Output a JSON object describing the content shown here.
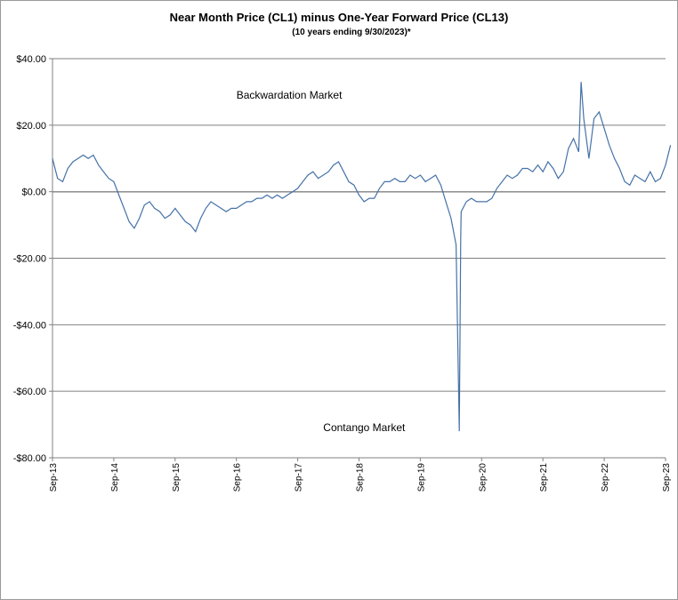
{
  "chart_data": {
    "type": "line",
    "title": "Near Month Price (CL1) minus One-Year Forward Price (CL13)",
    "subtitle": "(10 years ending  9/30/2023)*",
    "xlabel": "",
    "ylabel": "",
    "ylim": [
      -80,
      40
    ],
    "xlim": [
      "2013-09",
      "2023-09"
    ],
    "ytick_labels": [
      "$40.00",
      "$20.00",
      "$0.00",
      "-$20.00",
      "-$40.00",
      "-$60.00",
      "-$80.00"
    ],
    "ytick_values": [
      40,
      20,
      0,
      -20,
      -40,
      -60,
      -80
    ],
    "xtick_labels": [
      "Sep-13",
      "Sep-14",
      "Sep-15",
      "Sep-16",
      "Sep-17",
      "Sep-18",
      "Sep-19",
      "Sep-20",
      "Sep-21",
      "Sep-22",
      "Sep-23"
    ],
    "grid": true,
    "line_color": "#4572a7",
    "annotations": [
      {
        "text": "Backwardation Market",
        "x": "2016-09",
        "y": 28
      },
      {
        "text": "Contango Market",
        "x": "2018-02",
        "y": -72
      }
    ],
    "series": [
      {
        "points": [
          [
            "2013-09",
            10
          ],
          [
            "2013-10",
            4
          ],
          [
            "2013-11",
            3
          ],
          [
            "2013-12",
            7
          ],
          [
            "2014-01",
            9
          ],
          [
            "2014-02",
            10
          ],
          [
            "2014-03",
            11
          ],
          [
            "2014-04",
            10
          ],
          [
            "2014-05",
            11
          ],
          [
            "2014-06",
            8
          ],
          [
            "2014-07",
            6
          ],
          [
            "2014-08",
            4
          ],
          [
            "2014-09",
            3
          ],
          [
            "2014-10",
            -1
          ],
          [
            "2014-11",
            -5
          ],
          [
            "2014-12",
            -9
          ],
          [
            "2015-01",
            -11
          ],
          [
            "2015-02",
            -8
          ],
          [
            "2015-03",
            -4
          ],
          [
            "2015-04",
            -3
          ],
          [
            "2015-05",
            -5
          ],
          [
            "2015-06",
            -6
          ],
          [
            "2015-07",
            -8
          ],
          [
            "2015-08",
            -7
          ],
          [
            "2015-09",
            -5
          ],
          [
            "2015-10",
            -7
          ],
          [
            "2015-11",
            -9
          ],
          [
            "2015-12",
            -10
          ],
          [
            "2016-01",
            -12
          ],
          [
            "2016-02",
            -8
          ],
          [
            "2016-03",
            -5
          ],
          [
            "2016-04",
            -3
          ],
          [
            "2016-05",
            -4
          ],
          [
            "2016-06",
            -5
          ],
          [
            "2016-07",
            -6
          ],
          [
            "2016-08",
            -5
          ],
          [
            "2016-09",
            -5
          ],
          [
            "2016-10",
            -4
          ],
          [
            "2016-11",
            -3
          ],
          [
            "2016-12",
            -3
          ],
          [
            "2017-01",
            -2
          ],
          [
            "2017-02",
            -2
          ],
          [
            "2017-03",
            -1
          ],
          [
            "2017-04",
            -2
          ],
          [
            "2017-05",
            -1
          ],
          [
            "2017-06",
            -2
          ],
          [
            "2017-07",
            -1
          ],
          [
            "2017-08",
            0
          ],
          [
            "2017-09",
            1
          ],
          [
            "2017-10",
            3
          ],
          [
            "2017-11",
            5
          ],
          [
            "2017-12",
            6
          ],
          [
            "2018-01",
            4
          ],
          [
            "2018-02",
            5
          ],
          [
            "2018-03",
            6
          ],
          [
            "2018-04",
            8
          ],
          [
            "2018-05",
            9
          ],
          [
            "2018-06",
            6
          ],
          [
            "2018-07",
            3
          ],
          [
            "2018-08",
            2
          ],
          [
            "2018-09",
            -1
          ],
          [
            "2018-10",
            -3
          ],
          [
            "2018-11",
            -2
          ],
          [
            "2018-12",
            -2
          ],
          [
            "2019-01",
            1
          ],
          [
            "2019-02",
            3
          ],
          [
            "2019-03",
            3
          ],
          [
            "2019-04",
            4
          ],
          [
            "2019-05",
            3
          ],
          [
            "2019-06",
            3
          ],
          [
            "2019-07",
            5
          ],
          [
            "2019-08",
            4
          ],
          [
            "2019-09",
            5
          ],
          [
            "2019-10",
            3
          ],
          [
            "2019-11",
            4
          ],
          [
            "2019-12",
            5
          ],
          [
            "2020-01",
            2
          ],
          [
            "2020-02",
            -3
          ],
          [
            "2020-03",
            -8
          ],
          [
            "2020-04",
            -16
          ],
          [
            "2020-04-20",
            -72
          ],
          [
            "2020-04-28",
            -14
          ],
          [
            "2020-05",
            -6
          ],
          [
            "2020-06",
            -3
          ],
          [
            "2020-07",
            -2
          ],
          [
            "2020-08",
            -3
          ],
          [
            "2020-09",
            -3
          ],
          [
            "2020-10",
            -3
          ],
          [
            "2020-11",
            -2
          ],
          [
            "2020-12",
            1
          ],
          [
            "2021-01",
            3
          ],
          [
            "2021-02",
            5
          ],
          [
            "2021-03",
            4
          ],
          [
            "2021-04",
            5
          ],
          [
            "2021-05",
            7
          ],
          [
            "2021-06",
            7
          ],
          [
            "2021-07",
            6
          ],
          [
            "2021-08",
            8
          ],
          [
            "2021-09",
            6
          ],
          [
            "2021-10",
            9
          ],
          [
            "2021-11",
            7
          ],
          [
            "2021-12",
            4
          ],
          [
            "2022-01",
            6
          ],
          [
            "2022-02",
            13
          ],
          [
            "2022-03",
            16
          ],
          [
            "2022-04",
            12
          ],
          [
            "2022-04-15",
            33
          ],
          [
            "2022-05",
            22
          ],
          [
            "2022-06",
            10
          ],
          [
            "2022-07",
            22
          ],
          [
            "2022-08",
            24
          ],
          [
            "2022-09",
            19
          ],
          [
            "2022-10",
            14
          ],
          [
            "2022-11",
            10
          ],
          [
            "2022-12",
            7
          ],
          [
            "2023-01",
            3
          ],
          [
            "2023-02",
            2
          ],
          [
            "2023-03",
            5
          ],
          [
            "2023-04",
            4
          ],
          [
            "2023-05",
            3
          ],
          [
            "2023-06",
            6
          ],
          [
            "2023-07",
            3
          ],
          [
            "2023-08",
            4
          ],
          [
            "2023-09",
            8
          ],
          [
            "2023-09-30",
            14
          ]
        ]
      }
    ]
  }
}
